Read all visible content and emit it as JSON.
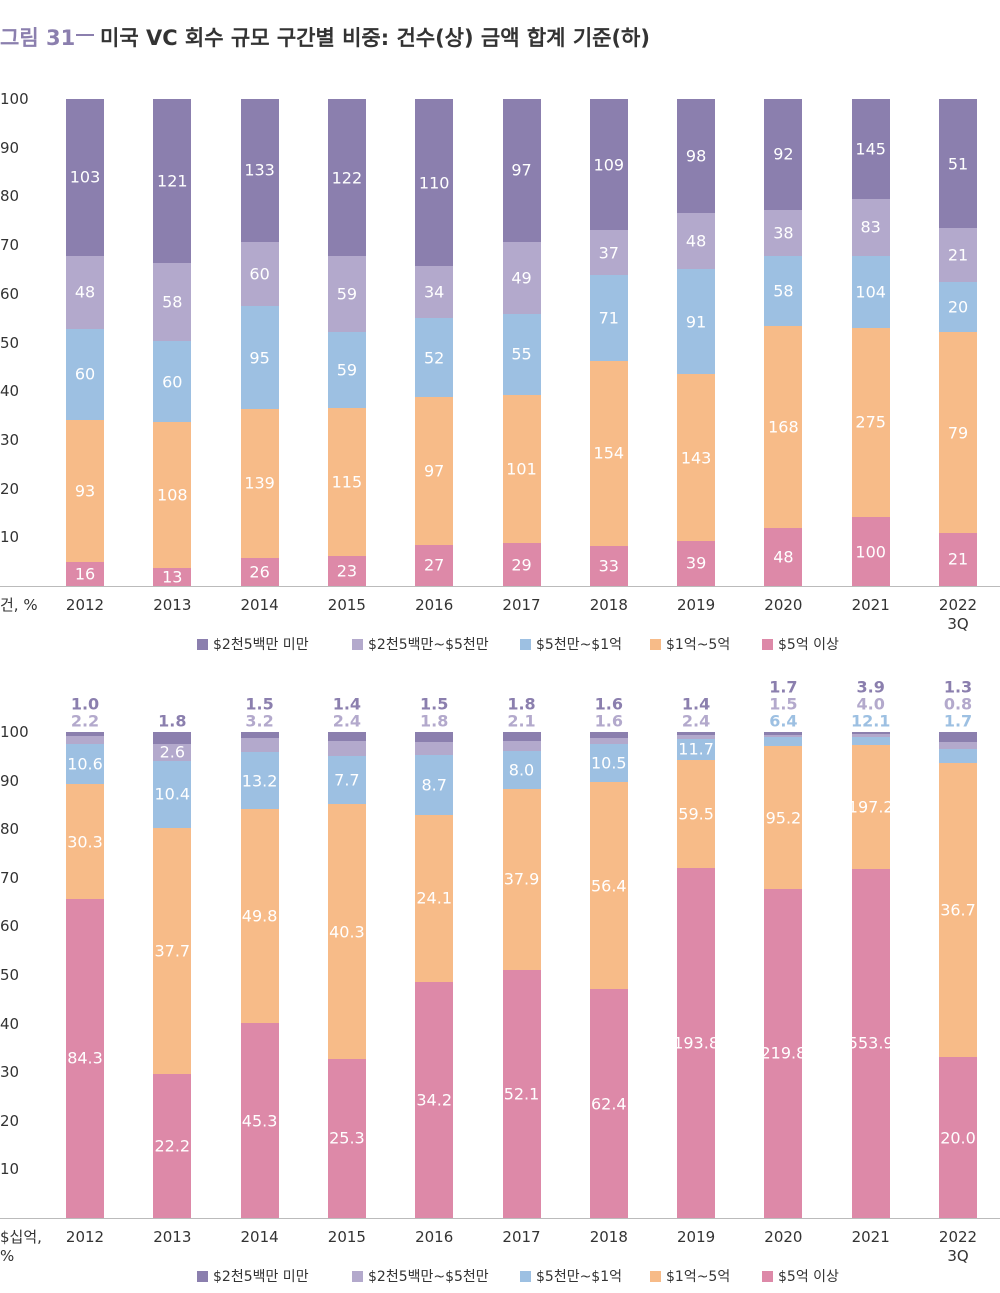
{
  "figure_label": "그림 31",
  "title": "미국 VC 회수 규모 구간별 비중: 건수(상) 금액 합계 기준(하)",
  "chart_data": [
    {
      "type": "bar",
      "stacking": "percent",
      "axis_label": "건, %",
      "categories": [
        "2012",
        "2013",
        "2014",
        "2015",
        "2016",
        "2017",
        "2018",
        "2019",
        "2020",
        "2021",
        "2022 3Q"
      ],
      "ylim": [
        0,
        100
      ],
      "yticks": [
        10,
        20,
        30,
        40,
        50,
        60,
        70,
        80,
        90,
        100
      ],
      "series": [
        {
          "name": "$5억 이상",
          "color": "#dd89a8",
          "values": [
            16,
            13,
            26,
            23,
            27,
            29,
            33,
            39,
            48,
            100,
            21
          ]
        },
        {
          "name": "$1억~5억",
          "color": "#f7bb88",
          "values": [
            93,
            108,
            139,
            115,
            97,
            101,
            154,
            143,
            168,
            275,
            79
          ]
        },
        {
          "name": "$5천만~$1억",
          "color": "#9dc0e2",
          "values": [
            60,
            60,
            95,
            59,
            52,
            55,
            71,
            91,
            58,
            104,
            20
          ]
        },
        {
          "name": "$2천5백만~$5천만",
          "color": "#b3a9cc",
          "values": [
            48,
            58,
            60,
            59,
            34,
            49,
            37,
            48,
            38,
            83,
            21
          ]
        },
        {
          "name": "$2천5백만 미만",
          "color": "#8b7fae",
          "values": [
            103,
            121,
            133,
            122,
            110,
            97,
            109,
            98,
            92,
            145,
            51
          ]
        }
      ]
    },
    {
      "type": "bar",
      "stacking": "percent",
      "axis_label": "$십억, %",
      "categories": [
        "2012",
        "2013",
        "2014",
        "2015",
        "2016",
        "2017",
        "2018",
        "2019",
        "2020",
        "2021",
        "2022 3Q"
      ],
      "ylim": [
        0,
        100
      ],
      "yticks": [
        10,
        20,
        30,
        40,
        50,
        60,
        70,
        80,
        90,
        100
      ],
      "series": [
        {
          "name": "$5억 이상",
          "color": "#dd89a8",
          "values": [
            84.3,
            22.2,
            45.3,
            25.3,
            34.2,
            52.1,
            62.4,
            193.8,
            219.8,
            553.9,
            20.0
          ],
          "value_labels": [
            "84.3",
            "22.2",
            "45.3",
            "25.3",
            "34.2",
            "52.1",
            "62.4",
            "193.8",
            "219.8",
            "553.9",
            "20.0"
          ]
        },
        {
          "name": "$1억~5억",
          "color": "#f7bb88",
          "values": [
            30.3,
            37.7,
            49.8,
            40.3,
            24.1,
            37.9,
            56.4,
            59.5,
            95.2,
            197.2,
            36.7
          ],
          "value_labels": [
            "30.3",
            "37.7",
            "49.8",
            "40.3",
            "24.1",
            "37.9",
            "56.4",
            "59.5",
            "95.2",
            "197.2",
            "36.7"
          ]
        },
        {
          "name": "$5천만~$1억",
          "color": "#9dc0e2",
          "values": [
            10.6,
            10.4,
            13.2,
            7.7,
            8.7,
            8.0,
            10.5,
            11.7,
            6.4,
            12.1,
            1.7
          ],
          "value_labels": [
            "10.6",
            "10.4",
            "13.2",
            "7.7",
            "8.7",
            "8.0",
            "10.5",
            "11.7",
            "6.4",
            "12.1",
            "1.7"
          ]
        },
        {
          "name": "$2천5백만~$5천만",
          "color": "#b3a9cc",
          "values": [
            2.2,
            2.6,
            3.2,
            2.4,
            1.8,
            2.1,
            1.6,
            2.4,
            1.5,
            4.0,
            0.8
          ],
          "value_labels": [
            "2.2",
            "2.6",
            "3.2",
            "2.4",
            "1.8",
            "2.1",
            "1.6",
            "2.4",
            "1.5",
            "4.0",
            "0.8"
          ]
        },
        {
          "name": "$2천5백만 미만",
          "color": "#8b7fae",
          "values": [
            1.0,
            1.8,
            1.5,
            1.4,
            1.5,
            1.8,
            1.6,
            1.4,
            1.7,
            3.9,
            1.3
          ],
          "value_labels": [
            "1.0",
            "1.8",
            "1.5",
            "1.4",
            "1.5",
            "1.8",
            "1.6",
            "1.4",
            "1.7",
            "3.9",
            "1.3"
          ]
        }
      ]
    }
  ]
}
